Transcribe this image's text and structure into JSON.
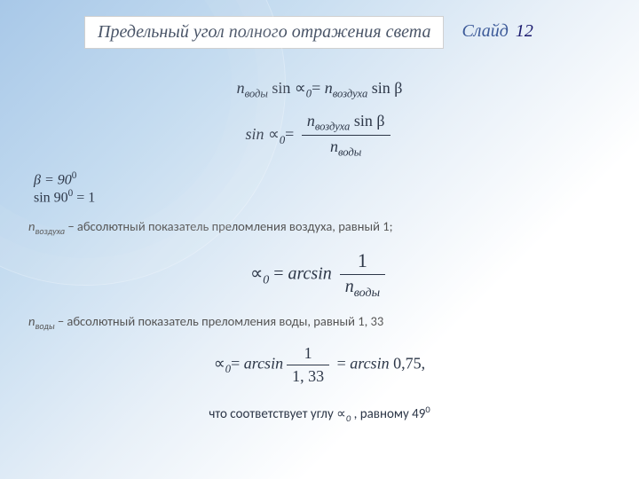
{
  "header": {
    "title": "Предельный угол полного отражения света",
    "slideWord": "Слайд",
    "slideNumber": "12"
  },
  "eq1": {
    "lhs_n": "n",
    "lhs_n_sub": "воды",
    "sin": "sin",
    "alpha": "∝",
    "zero": "0",
    "eq": "=",
    "rhs_n": "n",
    "rhs_n_sub": "воздуха",
    "beta": "sin β"
  },
  "eq2": {
    "sin": "sin",
    "alpha": "∝",
    "zero": "0",
    "eq": "=",
    "num_n": "n",
    "num_sub": "воздуха",
    "num_rest": " sin β",
    "den_n": "n",
    "den_sub": "воды"
  },
  "side": {
    "line1a": "β = 90",
    "line1sup": "0",
    "line2": "sin 90",
    "line2sup": "0",
    "line2rest": " =   1"
  },
  "note1": {
    "n": "n",
    "sub": "воздуха",
    "text": " − абсолютный показатель преломления воздуха, равный 1;"
  },
  "eq3": {
    "alpha": "∝",
    "zero": "0",
    "eq": " = ",
    "arcsin": "arcsin",
    "num": "1",
    "den_n": "n",
    "den_sub": "воды"
  },
  "note2": {
    "n": "n",
    "sub": "воды",
    "text": " − абсолютный показатель преломления воды, равный 1, 33"
  },
  "eq4": {
    "alpha": "∝",
    "zero": "0",
    "eq": "= ",
    "arcsin": "arcsin",
    "num": "1",
    "den": "1, 33",
    "eq2": " = ",
    "arcsin2": "arcsin",
    "val": " 0,75,"
  },
  "bottom": {
    "pre": "что соответствует углу  ",
    "alpha": "∝",
    "zero": "0",
    "mid": " , равному 49",
    "sup": "0"
  },
  "colors": {
    "text": "#2d3748",
    "slideWord": "#3b5998",
    "slideNum": "#1a1a6e",
    "titleBorder": "#d0d0d0",
    "titleText": "#4a5568"
  }
}
